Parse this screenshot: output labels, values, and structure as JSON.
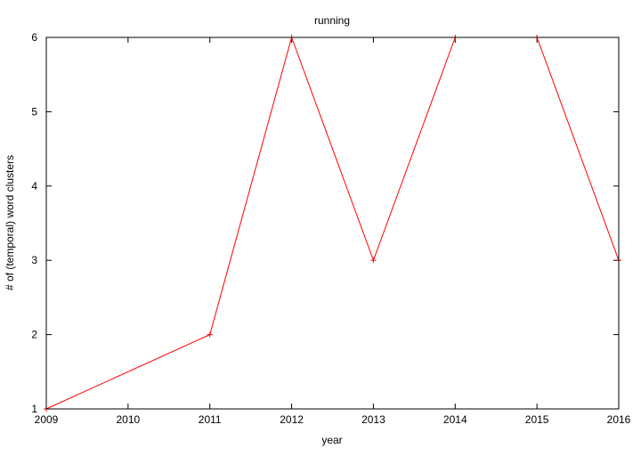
{
  "chart_data": {
    "type": "line",
    "title": "running",
    "xlabel": "year",
    "ylabel": "# of (temporal) word clusters",
    "xlim": [
      2009,
      2016
    ],
    "ylim": [
      1,
      6
    ],
    "x_ticks": [
      2009,
      2010,
      2011,
      2012,
      2013,
      2014,
      2015,
      2016
    ],
    "y_ticks": [
      1,
      2,
      3,
      4,
      5,
      6
    ],
    "grid": false,
    "legend": "none",
    "marker": "plus",
    "series": [
      {
        "color": "#ff0000",
        "x": [
          2009,
          2011,
          2012,
          2013,
          2014,
          2015,
          2016
        ],
        "y": [
          1,
          2,
          6,
          3,
          6,
          6,
          3
        ]
      }
    ]
  }
}
